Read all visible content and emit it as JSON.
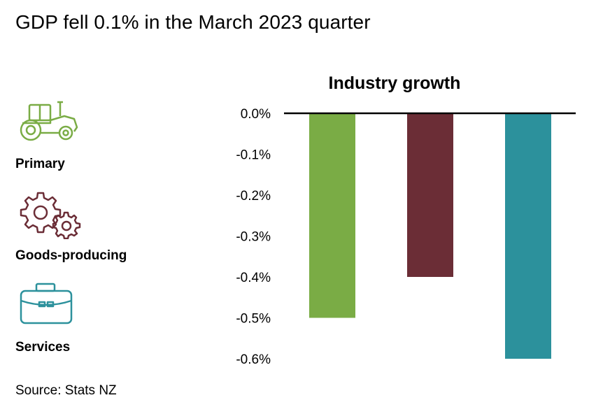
{
  "headline": "GDP fell 0.1% in the March 2023 quarter",
  "legend": [
    {
      "label": "Primary",
      "icon": "tractor-icon",
      "color": "#7aac45"
    },
    {
      "label": "Goods-producing",
      "icon": "gears-icon",
      "color": "#6b2d36"
    },
    {
      "label": "Services",
      "icon": "briefcase-icon",
      "color": "#2c919c"
    }
  ],
  "source": "Source: Stats NZ",
  "chart_data": {
    "type": "bar",
    "title": "Industry growth",
    "categories": [
      "Primary",
      "Goods-producing",
      "Services"
    ],
    "values": [
      -0.5,
      -0.4,
      -0.6
    ],
    "colors": [
      "#7aac45",
      "#6b2d36",
      "#2c919c"
    ],
    "ylim": [
      -0.6,
      0.0
    ],
    "yticks": [
      0.0,
      -0.1,
      -0.2,
      -0.3,
      -0.4,
      -0.5,
      -0.6
    ],
    "ytick_labels": [
      "0.0%",
      "-0.1%",
      "-0.2%",
      "-0.3%",
      "-0.4%",
      "-0.5%",
      "-0.6%"
    ],
    "xlabel": "",
    "ylabel": "",
    "grid": false,
    "legend": "left, with icons"
  }
}
